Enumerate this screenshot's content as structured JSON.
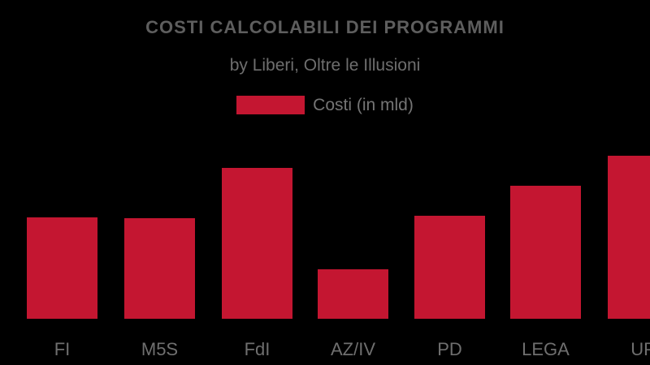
{
  "header": {
    "title": "COSTI CALCOLABILI DEI PROGRAMMI",
    "subtitle": "by Liberi, Oltre le Illusioni"
  },
  "legend": {
    "label": "Costi (in mld)",
    "swatch_color": "#c41631"
  },
  "colors": {
    "background": "#000000",
    "bar": "#c41631",
    "title_text": "#5e5e5e",
    "subtitle_text": "#6e6e6e",
    "legend_text": "#757575",
    "axis_label_text": "#6f6f6f"
  },
  "chart_data": {
    "type": "bar",
    "title": "COSTI CALCOLABILI DEI PROGRAMMI",
    "subtitle": "by Liberi, Oltre le Illusioni",
    "series": [
      {
        "name": "Costi (in mld)",
        "values": [
          125,
          124,
          186,
          61,
          127,
          164,
          201
        ]
      }
    ],
    "categories": [
      "FI",
      "M5S",
      "FdI",
      "AZ/IV",
      "PD",
      "LEGA",
      "UP"
    ],
    "xlabel": "",
    "ylabel": "Costi (in mld)",
    "ylim": [
      0,
      230
    ],
    "grid": false,
    "legend_position": "top-center",
    "bar_color": "#c41631",
    "last_bar_clipped_at_right_edge": true
  }
}
